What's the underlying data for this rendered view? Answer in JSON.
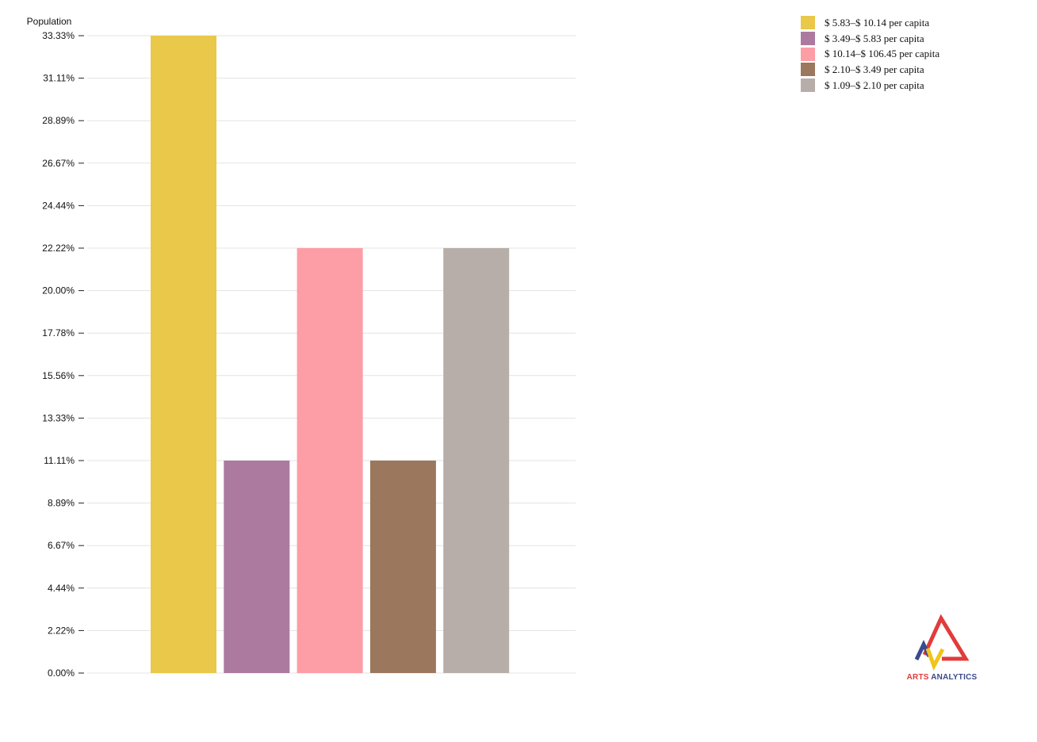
{
  "chart_data": {
    "type": "bar",
    "ylabel": "Population",
    "ylim": [
      0,
      33.33
    ],
    "yticks": [
      "0.00%",
      "2.22%",
      "4.44%",
      "6.67%",
      "8.89%",
      "11.11%",
      "13.33%",
      "15.56%",
      "17.78%",
      "20.00%",
      "22.22%",
      "24.44%",
      "26.67%",
      "28.89%",
      "31.11%",
      "33.33%"
    ],
    "grid": true,
    "legend_position": "top-right",
    "categories": [
      "$ 5.83–$ 10.14 per capita",
      "$ 3.49–$ 5.83 per capita",
      "$ 10.14–$ 106.45 per capita",
      "$ 2.10–$ 3.49 per capita",
      "$ 1.09–$ 2.10 per capita"
    ],
    "values": [
      33.33,
      11.11,
      22.22,
      11.11,
      22.22
    ],
    "colors": [
      "#e9c84a",
      "#ac7a9f",
      "#fd9da5",
      "#9b775e",
      "#b8aea9"
    ]
  },
  "legend": {
    "items": [
      {
        "label": "$ 5.83–$ 10.14 per capita",
        "color": "#e9c84a"
      },
      {
        "label": "$ 3.49–$ 5.83 per capita",
        "color": "#ac7a9f"
      },
      {
        "label": "$ 10.14–$ 106.45 per capita",
        "color": "#fd9da5"
      },
      {
        "label": "$ 2.10–$ 3.49 per capita",
        "color": "#9b775e"
      },
      {
        "label": "$ 1.09–$ 2.10 per capita",
        "color": "#b8aea9"
      }
    ]
  },
  "logo": {
    "text_part1": "ARTS",
    "text_part2": "ANALYTICS"
  }
}
